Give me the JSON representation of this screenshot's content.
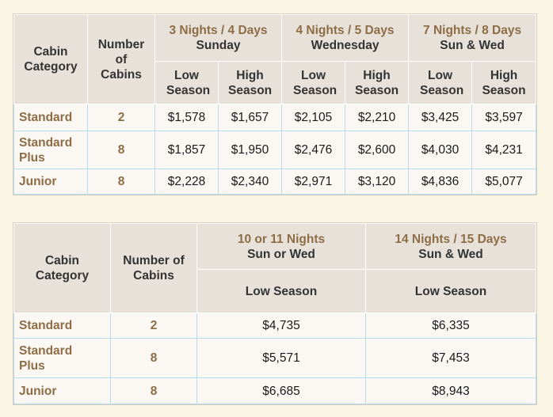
{
  "table1": {
    "headers": {
      "cabin_category": "Cabin Category",
      "number_of_cabins": "Number of Cabins",
      "groups": [
        {
          "line1": "3 Nights / 4 Days",
          "line2": "Sunday"
        },
        {
          "line1": "4 Nights / 5 Days",
          "line2": "Wednesday"
        },
        {
          "line1": "7 Nights / 8 Days",
          "line2": "Sun & Wed"
        }
      ],
      "low_season": "Low Season",
      "high_season": "High Season"
    },
    "rows": [
      {
        "category": "Standard",
        "cabins": "2",
        "prices": [
          "$1,578",
          "$1,657",
          "$2,105",
          "$2,210",
          "$3,425",
          "$3,597"
        ]
      },
      {
        "category": "Standard Plus",
        "cabins": "8",
        "prices": [
          "$1,857",
          "$1,950",
          "$2,476",
          "$2,600",
          "$4,030",
          "$4,231"
        ]
      },
      {
        "category": "Junior",
        "cabins": "8",
        "prices": [
          "$2,228",
          "$2,340",
          "$2,971",
          "$3,120",
          "$4,836",
          "$5,077"
        ]
      }
    ]
  },
  "table2": {
    "headers": {
      "cabin_category": "Cabin Category",
      "number_of_cabins": "Number of Cabins",
      "groups": [
        {
          "line1": "10 or 11 Nights",
          "line2": "Sun or Wed"
        },
        {
          "line1": "14 Nights / 15 Days",
          "line2": "Sun & Wed"
        }
      ],
      "low_season": "Low Season"
    },
    "rows": [
      {
        "category": "Standard",
        "cabins": "2",
        "prices": [
          "$4,735",
          "$6,335"
        ]
      },
      {
        "category": "Standard Plus",
        "cabins": "8",
        "prices": [
          "$5,571",
          "$7,453"
        ]
      },
      {
        "category": "Junior",
        "cabins": "8",
        "prices": [
          "$6,685",
          "$8,943"
        ]
      }
    ]
  }
}
